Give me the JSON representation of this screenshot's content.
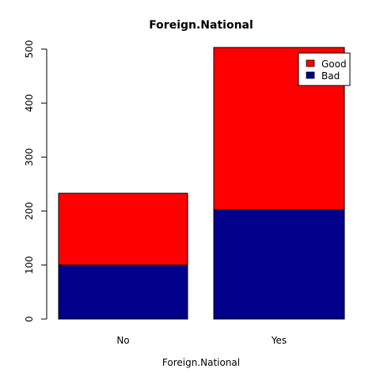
{
  "chart_data": {
    "type": "bar",
    "stacked": true,
    "title": "Foreign.National",
    "xlabel": "Foreign.National",
    "ylabel": "",
    "categories": [
      "No",
      "Yes"
    ],
    "series": [
      {
        "name": "Bad",
        "values": [
          100,
          203
        ],
        "color": "#00008B"
      },
      {
        "name": "Good",
        "values": [
          133,
          300
        ],
        "color": "#FF0000"
      }
    ],
    "ylim": [
      0,
      500
    ],
    "yticks": [
      0,
      100,
      200,
      300,
      400,
      500
    ],
    "ytick_labels": [
      "0",
      "100",
      "200",
      "300",
      "400",
      "500"
    ],
    "legend": {
      "placement": "top-right",
      "entries": [
        {
          "label": "Good",
          "color": "#FF0000"
        },
        {
          "label": "Bad",
          "color": "#00008B"
        }
      ]
    },
    "grid": false
  }
}
